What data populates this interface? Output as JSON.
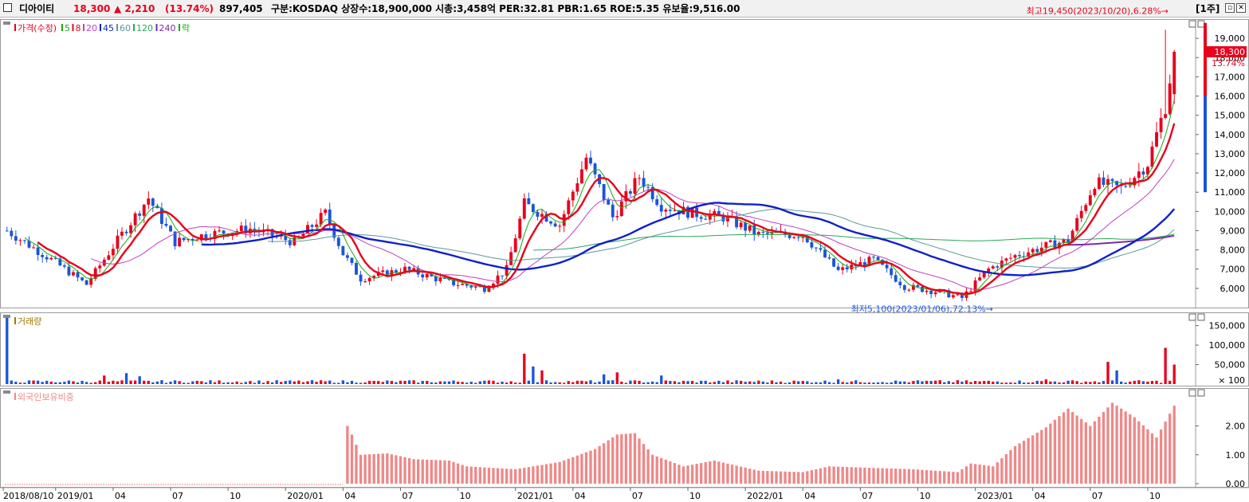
{
  "header": {
    "name": "디아이티",
    "price": "18,300",
    "change": "▲ 2,210",
    "change_pct": "(13.74%)",
    "volume": "897,405",
    "info": "구분:KOSDAQ 상장수:18,900,000 시총:3,458억 PER:32.81 PBR:1.65 ROE:5.35 유보율:9,516.00",
    "period_button": "[1주]"
  },
  "colors": {
    "up": "#e8001c",
    "down": "#1a55d8",
    "ma5": "#18a818",
    "ma8": "#e8001c",
    "ma20": "#c040c0",
    "ma45": "#1020c8",
    "ma60": "#5a9a9a",
    "ma120": "#2aa858",
    "ma240": "#7a2aa8",
    "volume_label": "#a07a00",
    "foreign_bar": "#ee8888"
  },
  "chart_data": [
    {
      "type": "line",
      "title": "가격(수정)",
      "legend": [
        "가격(수정)",
        "5",
        "8",
        "20",
        "45",
        "60",
        "120",
        "240",
        "락"
      ],
      "ylim": [
        5000,
        20000
      ],
      "y_ticks": [
        "6,000",
        "7,000",
        "8,000",
        "9,000",
        "10,000",
        "11,000",
        "12,000",
        "13,000",
        "14,000",
        "15,000",
        "16,000",
        "17,000",
        "18,000",
        "19,000"
      ],
      "y_values": [
        6000,
        7000,
        8000,
        9000,
        10000,
        11000,
        12000,
        13000,
        14000,
        15000,
        16000,
        17000,
        18000,
        19000
      ],
      "last_price": "18,300",
      "last_pct": "13.74%",
      "annotation_high": "최고19,450(2023/10/20),6.28%→",
      "annotation_low": "최저5,100(2023/01/06),72.13%→",
      "x_ticks": [
        "2018/08/10",
        "2019/01",
        "04",
        "07",
        "10",
        "2020/01",
        "04",
        "07",
        "10",
        "2021/01",
        "04",
        "07",
        "10",
        "2022/01",
        "04",
        "07",
        "10",
        "2023/01",
        "04",
        "07",
        "10"
      ],
      "close_anchors": [
        [
          0,
          9000
        ],
        [
          10,
          7500
        ],
        [
          18,
          6200
        ],
        [
          25,
          8500
        ],
        [
          32,
          10700
        ],
        [
          38,
          8400
        ],
        [
          45,
          8800
        ],
        [
          55,
          9100
        ],
        [
          65,
          8400
        ],
        [
          72,
          9900
        ],
        [
          76,
          7800
        ],
        [
          80,
          6500
        ],
        [
          90,
          7000
        ],
        [
          100,
          6300
        ],
        [
          108,
          6000
        ],
        [
          113,
          7000
        ],
        [
          117,
          10400
        ],
        [
          125,
          9300
        ],
        [
          131,
          12800
        ],
        [
          137,
          9700
        ],
        [
          143,
          11800
        ],
        [
          148,
          10300
        ],
        [
          155,
          9900
        ],
        [
          162,
          9700
        ],
        [
          170,
          8800
        ],
        [
          180,
          8800
        ],
        [
          188,
          6900
        ],
        [
          196,
          7500
        ],
        [
          203,
          6100
        ],
        [
          211,
          5800
        ],
        [
          216,
          5500
        ],
        [
          222,
          7000
        ],
        [
          228,
          7700
        ],
        [
          235,
          8200
        ],
        [
          240,
          8500
        ],
        [
          246,
          11500
        ],
        [
          252,
          11200
        ],
        [
          258,
          12500
        ],
        [
          262,
          15500
        ],
        [
          264,
          18300
        ]
      ],
      "volume_ticks": [
        "50,000",
        "100,000",
        "150,000"
      ],
      "volume_values": [
        50000,
        100000,
        150000
      ],
      "volume_unit": "× 100",
      "volume_spikes": [
        [
          0,
          170000
        ],
        [
          22,
          22000
        ],
        [
          27,
          28000
        ],
        [
          30,
          20000
        ],
        [
          117,
          78000
        ],
        [
          119,
          45000
        ],
        [
          121,
          35000
        ],
        [
          135,
          25000
        ],
        [
          138,
          30000
        ],
        [
          148,
          22000
        ],
        [
          188,
          12000
        ],
        [
          205,
          8000
        ],
        [
          235,
          12000
        ],
        [
          249,
          57000
        ],
        [
          251,
          35000
        ],
        [
          262,
          93000
        ],
        [
          264,
          50000
        ]
      ],
      "foreign_ticks": [
        "0.00",
        "1.00",
        "2.00"
      ],
      "foreign_values": [
        0,
        1,
        2
      ],
      "foreign_anchors": [
        [
          0,
          0
        ],
        [
          76,
          0
        ],
        [
          77,
          2.0
        ],
        [
          78,
          1.7
        ],
        [
          80,
          1.0
        ],
        [
          86,
          1.05
        ],
        [
          92,
          0.85
        ],
        [
          100,
          0.8
        ],
        [
          104,
          0.6
        ],
        [
          115,
          0.5
        ],
        [
          125,
          0.75
        ],
        [
          133,
          1.2
        ],
        [
          138,
          1.7
        ],
        [
          142,
          1.75
        ],
        [
          146,
          1.0
        ],
        [
          153,
          0.6
        ],
        [
          160,
          0.8
        ],
        [
          170,
          0.45
        ],
        [
          180,
          0.4
        ],
        [
          186,
          0.6
        ],
        [
          195,
          0.55
        ],
        [
          205,
          0.5
        ],
        [
          215,
          0.4
        ],
        [
          218,
          0.7
        ],
        [
          223,
          0.6
        ],
        [
          228,
          1.3
        ],
        [
          235,
          1.95
        ],
        [
          240,
          2.6
        ],
        [
          245,
          2.0
        ],
        [
          250,
          2.8
        ],
        [
          255,
          2.3
        ],
        [
          260,
          1.6
        ],
        [
          264,
          2.7
        ]
      ]
    }
  ]
}
